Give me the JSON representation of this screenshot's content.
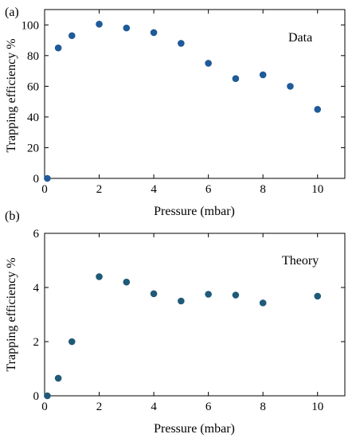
{
  "chart_data": [
    {
      "type": "scatter",
      "panel_label": "(a)",
      "annotation": "Data",
      "xlabel": "Pressure (mbar)",
      "ylabel": "Trapping efficiency %",
      "xlim": [
        0,
        11
      ],
      "ylim": [
        0,
        110
      ],
      "xticks": [
        0,
        2,
        4,
        6,
        8,
        10
      ],
      "yticks": [
        0,
        20,
        40,
        60,
        80,
        100
      ],
      "marker_color": "#1f5a99",
      "series": [
        {
          "x": [
            0.1,
            0.5,
            1,
            2,
            3,
            4,
            5,
            6,
            7,
            8,
            9,
            10
          ],
          "y": [
            0,
            85,
            93,
            100.5,
            98,
            95,
            88,
            75,
            65,
            67.5,
            60,
            45
          ]
        }
      ]
    },
    {
      "type": "scatter",
      "panel_label": "(b)",
      "annotation": "Theory",
      "xlabel": "Pressure (mbar)",
      "ylabel": "Trapping efficiency %",
      "xlim": [
        0,
        11
      ],
      "ylim": [
        0,
        6
      ],
      "xticks": [
        0,
        2,
        4,
        6,
        8,
        10
      ],
      "yticks": [
        0,
        2,
        4,
        6
      ],
      "marker_color": "#1f5a78",
      "series": [
        {
          "x": [
            0.1,
            0.5,
            1,
            2,
            3,
            4,
            5,
            6,
            7,
            8,
            10
          ],
          "y": [
            0,
            0.65,
            2,
            4.4,
            4.2,
            3.77,
            3.5,
            3.75,
            3.72,
            3.43,
            3.68
          ]
        }
      ]
    }
  ]
}
